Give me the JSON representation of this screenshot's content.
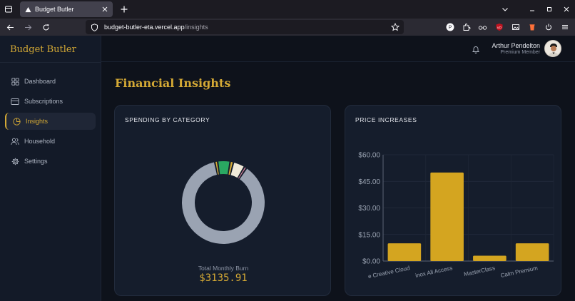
{
  "browser": {
    "tab_title": "Budget Butler",
    "url_host": "budget-butler-eta.vercel.app",
    "url_path": "/insights"
  },
  "app": {
    "brand": "Budget Butler",
    "nav": [
      {
        "label": "Dashboard",
        "icon": "dashboard-icon",
        "active": false
      },
      {
        "label": "Subscriptions",
        "icon": "card-icon",
        "active": false
      },
      {
        "label": "Insights",
        "icon": "pie-chart-icon",
        "active": true
      },
      {
        "label": "Household",
        "icon": "users-icon",
        "active": false
      },
      {
        "label": "Settings",
        "icon": "gear-icon",
        "active": false
      }
    ],
    "user": {
      "name": "Arthur Pendelton",
      "role": "Premium Member"
    },
    "page_title": "Financial Insights",
    "colors": {
      "accent": "#d4a935",
      "background": "#0e121b",
      "card": "#151d2c"
    }
  },
  "spending": {
    "title": "SPENDING BY CATEGORY",
    "total_label": "Total Monthly Burn",
    "total_value": "$3135.91"
  },
  "price_increases": {
    "title": "PRICE INCREASES"
  },
  "chart_data": [
    {
      "type": "pie",
      "variant": "donut",
      "title": "SPENDING BY CATEGORY",
      "slices": [
        {
          "value": 2700,
          "color": "#9aa3b2"
        },
        {
          "value": 35,
          "color": "#d4a935"
        },
        {
          "value": 150,
          "color": "#2aa862"
        },
        {
          "value": 40,
          "color": "#d4a935"
        },
        {
          "value": 140,
          "color": "#f1ead9"
        },
        {
          "value": 30,
          "color": "#e08aa2"
        }
      ]
    },
    {
      "type": "bar",
      "title": "PRICE INCREASES",
      "categories": [
        "Adobe Creative Cloud",
        "Equinox All Access",
        "MasterClass",
        "Calm Premium"
      ],
      "tick_labels": [
        "e Creative Cloud",
        "inox All Access",
        "MasterClass",
        "Calm Premium"
      ],
      "values": [
        10,
        50,
        3,
        10
      ],
      "ylim": [
        0,
        60
      ],
      "yticks": [
        0,
        15,
        30,
        45,
        60
      ],
      "ytick_labels": [
        "$0.00",
        "$15.00",
        "$30.00",
        "$45.00",
        "$60.00"
      ],
      "bar_color": "#d4a520",
      "grid": true
    }
  ]
}
